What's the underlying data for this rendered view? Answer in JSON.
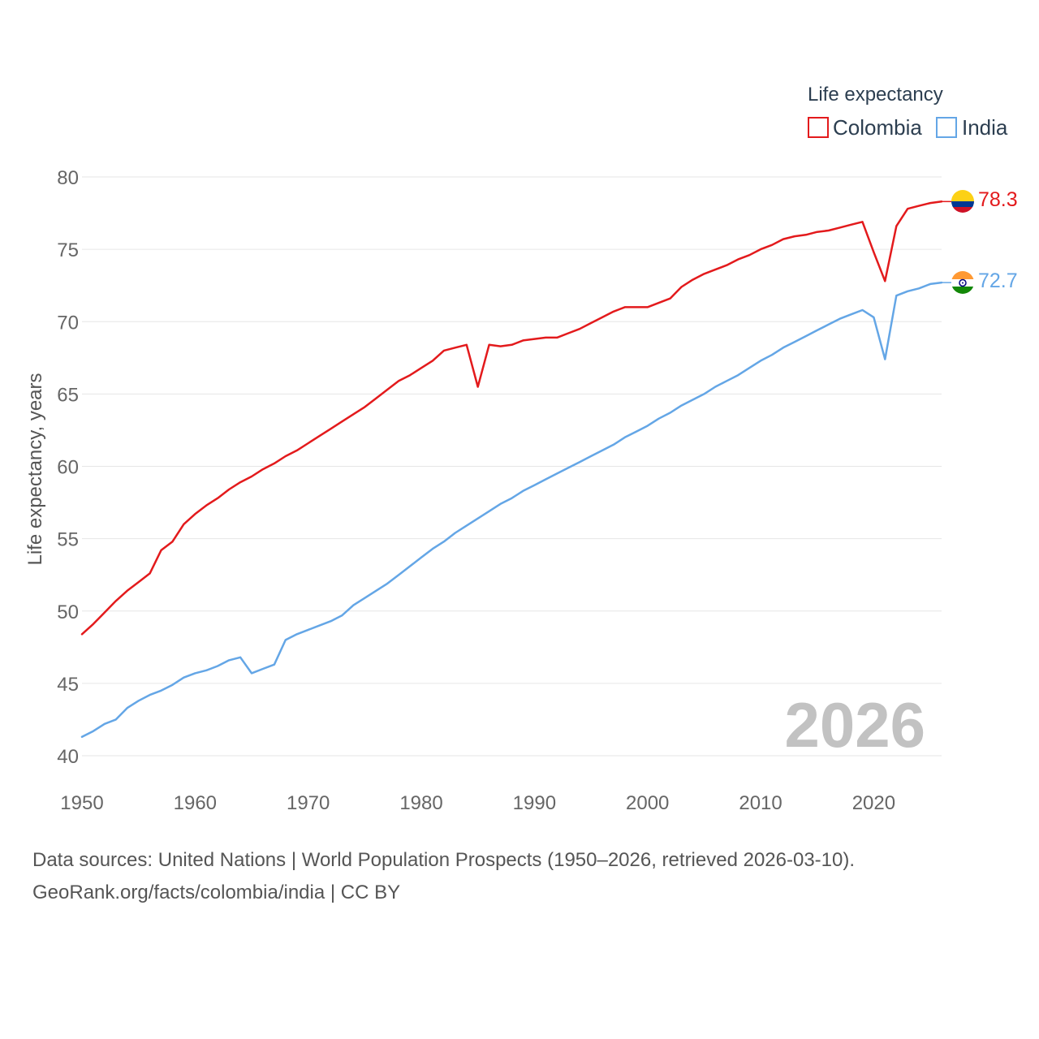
{
  "chart_data": {
    "type": "line",
    "legend_title": "Life expectancy",
    "ylabel": "Life expectancy, years",
    "xlabel": "",
    "xlim": [
      1950,
      2026
    ],
    "ylim": [
      40,
      80
    ],
    "x_ticks": [
      1950,
      1960,
      1970,
      1980,
      1990,
      2000,
      2010,
      2020
    ],
    "y_ticks": [
      40,
      45,
      50,
      55,
      60,
      65,
      70,
      75,
      80
    ],
    "year_label": "2026",
    "x": [
      1950,
      1951,
      1952,
      1953,
      1954,
      1955,
      1956,
      1957,
      1958,
      1959,
      1960,
      1961,
      1962,
      1963,
      1964,
      1965,
      1966,
      1967,
      1968,
      1969,
      1970,
      1971,
      1972,
      1973,
      1974,
      1975,
      1976,
      1977,
      1978,
      1979,
      1980,
      1981,
      1982,
      1983,
      1984,
      1985,
      1986,
      1987,
      1988,
      1989,
      1990,
      1991,
      1992,
      1993,
      1994,
      1995,
      1996,
      1997,
      1998,
      1999,
      2000,
      2001,
      2002,
      2003,
      2004,
      2005,
      2006,
      2007,
      2008,
      2009,
      2010,
      2011,
      2012,
      2013,
      2014,
      2015,
      2016,
      2017,
      2018,
      2019,
      2020,
      2021,
      2022,
      2023,
      2024,
      2025,
      2026
    ],
    "series": [
      {
        "name": "Colombia",
        "color": "#e31a1c",
        "end_label": "78.3",
        "values": [
          48.4,
          49.1,
          49.9,
          50.7,
          51.4,
          52.0,
          52.6,
          54.2,
          54.8,
          56.0,
          56.7,
          57.3,
          57.8,
          58.4,
          58.9,
          59.3,
          59.8,
          60.2,
          60.7,
          61.1,
          61.6,
          62.1,
          62.6,
          63.1,
          63.6,
          64.1,
          64.7,
          65.3,
          65.9,
          66.3,
          66.8,
          67.3,
          68.0,
          68.2,
          68.4,
          65.5,
          68.4,
          68.3,
          68.4,
          68.7,
          68.8,
          68.9,
          68.9,
          69.2,
          69.5,
          69.9,
          70.3,
          70.7,
          71.0,
          71.0,
          71.0,
          71.3,
          71.6,
          72.4,
          72.9,
          73.3,
          73.6,
          73.9,
          74.3,
          74.6,
          75.0,
          75.3,
          75.7,
          75.9,
          76.0,
          76.2,
          76.3,
          76.5,
          76.7,
          76.9,
          74.8,
          72.8,
          76.6,
          77.8,
          78.0,
          78.2,
          78.3
        ]
      },
      {
        "name": "India",
        "color": "#64a6e6",
        "end_label": "72.7",
        "values": [
          41.3,
          41.7,
          42.2,
          42.5,
          43.3,
          43.8,
          44.2,
          44.5,
          44.9,
          45.4,
          45.7,
          45.9,
          46.2,
          46.6,
          46.8,
          45.7,
          46.0,
          46.3,
          48.0,
          48.4,
          48.7,
          49.0,
          49.3,
          49.7,
          50.4,
          50.9,
          51.4,
          51.9,
          52.5,
          53.1,
          53.7,
          54.3,
          54.8,
          55.4,
          55.9,
          56.4,
          56.9,
          57.4,
          57.8,
          58.3,
          58.7,
          59.1,
          59.5,
          59.9,
          60.3,
          60.7,
          61.1,
          61.5,
          62.0,
          62.4,
          62.8,
          63.3,
          63.7,
          64.2,
          64.6,
          65.0,
          65.5,
          65.9,
          66.3,
          66.8,
          67.3,
          67.7,
          68.2,
          68.6,
          69.0,
          69.4,
          69.8,
          70.2,
          70.5,
          70.8,
          70.3,
          67.4,
          71.8,
          72.1,
          72.3,
          72.6,
          72.7
        ]
      }
    ]
  },
  "footer": {
    "line1": "Data sources: United Nations | World Population Prospects (1950–2026, retrieved 2026-03-10).",
    "line2": "GeoRank.org/facts/colombia/india | CC BY"
  },
  "colors": {
    "grid": "#e6e6e6",
    "tick": "#666666",
    "watermark": "#c2c2c2"
  }
}
